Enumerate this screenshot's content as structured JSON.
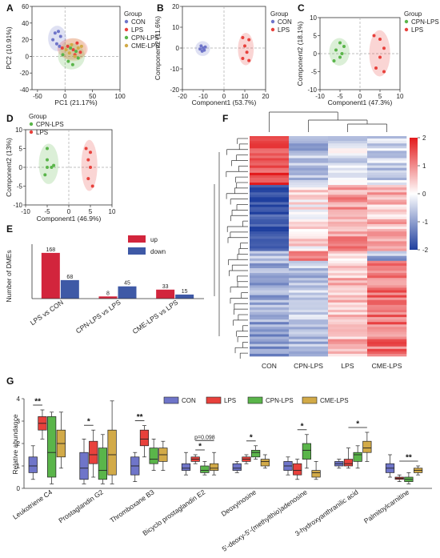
{
  "colors": {
    "CON": "#6f75c9",
    "LPS": "#e8413c",
    "CPN-LPS": "#5ab54a",
    "CME-LPS": "#d2aa48",
    "bar_up": "#d2253c",
    "bar_down": "#3e59a6",
    "heat_high": "#e31a1c",
    "heat_mid": "#ffffff",
    "heat_low": "#1f3f9e"
  },
  "chart_data": [
    {
      "panel": "A",
      "type": "scatter",
      "xlabel": "PC1 (21.17%)",
      "ylabel": "PC2 (10.91%)",
      "xlim": [
        -60,
        100
      ],
      "ylim": [
        -40,
        60
      ],
      "xticks": [
        "-50",
        "0",
        "50",
        "100"
      ],
      "yticks": [
        "-40",
        "-20",
        "0",
        "20",
        "40",
        "60"
      ],
      "legend_title": "Group",
      "legend": [
        "CON",
        "LPS",
        "CPN-LPS",
        "CME-LPS"
      ],
      "series": [
        {
          "name": "CON",
          "points": [
            [
              -22,
              20
            ],
            [
              -18,
              28
            ],
            [
              -12,
              30
            ],
            [
              -8,
              24
            ],
            [
              -15,
              15
            ],
            [
              -10,
              12
            ]
          ]
        },
        {
          "name": "LPS",
          "points": [
            [
              -5,
              10
            ],
            [
              5,
              12
            ],
            [
              15,
              8
            ],
            [
              22,
              16
            ],
            [
              28,
              5
            ],
            [
              18,
              2
            ]
          ]
        },
        {
          "name": "CPN-LPS",
          "points": [
            [
              -4,
              2
            ],
            [
              6,
              -6
            ],
            [
              14,
              -10
            ],
            [
              20,
              6
            ],
            [
              10,
              10
            ],
            [
              24,
              -2
            ]
          ]
        },
        {
          "name": "CME-LPS",
          "points": [
            [
              2,
              8
            ],
            [
              12,
              14
            ],
            [
              24,
              10
            ],
            [
              30,
              12
            ],
            [
              8,
              4
            ],
            [
              18,
              0
            ]
          ]
        }
      ]
    },
    {
      "panel": "B",
      "type": "scatter",
      "xlabel": "Component1 (53.7%)",
      "ylabel": "Component2 (11.6%)",
      "xlim": [
        -20,
        20
      ],
      "ylim": [
        -20,
        20
      ],
      "xticks": [
        "-20",
        "-10",
        "0",
        "10",
        "20"
      ],
      "yticks": [
        "-20",
        "-10",
        "0",
        "10",
        "20"
      ],
      "legend_title": "Group",
      "legend": [
        "CON",
        "LPS"
      ],
      "series": [
        {
          "name": "CON",
          "points": [
            [
              -11,
              1
            ],
            [
              -10,
              0
            ],
            [
              -9.5,
              -1
            ],
            [
              -10.5,
              -1.5
            ],
            [
              -9,
              0.5
            ],
            [
              -11.5,
              -0.5
            ]
          ]
        },
        {
          "name": "LPS",
          "points": [
            [
              9,
              5
            ],
            [
              12,
              4
            ],
            [
              10,
              1
            ],
            [
              11,
              -2
            ],
            [
              9,
              -5
            ],
            [
              12,
              -6
            ]
          ]
        }
      ]
    },
    {
      "panel": "C",
      "type": "scatter",
      "xlabel": "Component1 (47.3%)",
      "ylabel": "Component2 (18.1%)",
      "xlim": [
        -10,
        10
      ],
      "ylim": [
        -10,
        10
      ],
      "xticks": [
        "-10",
        "-5",
        "0",
        "5",
        "10"
      ],
      "yticks": [
        "-10",
        "-5",
        "0",
        "5",
        "10"
      ],
      "legend_title": "Group",
      "legend": [
        "CPN-LPS",
        "LPS"
      ],
      "series": [
        {
          "name": "CPN-LPS",
          "points": [
            [
              -6,
              1
            ],
            [
              -5,
              3
            ],
            [
              -4,
              2
            ],
            [
              -5,
              -1
            ],
            [
              -6.5,
              -2
            ],
            [
              -4.5,
              0
            ]
          ]
        },
        {
          "name": "LPS",
          "points": [
            [
              3.5,
              5
            ],
            [
              5,
              4
            ],
            [
              6,
              1.5
            ],
            [
              5,
              -1
            ],
            [
              4,
              -4
            ],
            [
              6,
              -5
            ]
          ]
        }
      ]
    },
    {
      "panel": "D",
      "type": "scatter",
      "xlabel": "Component1 (46.9%)",
      "ylabel": "Component2 (13%)",
      "xlim": [
        -10,
        10
      ],
      "ylim": [
        -10,
        10
      ],
      "xticks": [
        "-10",
        "-5",
        "0",
        "5",
        "10"
      ],
      "yticks": [
        "-10",
        "-5",
        "0",
        "5",
        "10"
      ],
      "legend_title": "Group",
      "legend": [
        "CPN-LPS",
        "LPS"
      ],
      "series": [
        {
          "name": "CPN-LPS",
          "points": [
            [
              -5,
              5
            ],
            [
              -5,
              2
            ],
            [
              -4,
              0
            ],
            [
              -5,
              0
            ],
            [
              -3.5,
              0.5
            ],
            [
              -5.5,
              -2
            ]
          ]
        },
        {
          "name": "LPS",
          "points": [
            [
              4,
              5
            ],
            [
              5,
              4
            ],
            [
              4.5,
              2
            ],
            [
              5,
              0
            ],
            [
              4.5,
              -3
            ],
            [
              5.5,
              -5
            ]
          ]
        }
      ]
    },
    {
      "panel": "E",
      "type": "bar",
      "ylabel": "Number of DMEs",
      "categories": [
        "LPS vs CON",
        "CPN-LPS vs LPS",
        "CME-LPS vs LPS"
      ],
      "ylim": [
        0,
        200
      ],
      "series": [
        {
          "name": "up",
          "values": [
            168,
            8,
            33
          ]
        },
        {
          "name": "down",
          "values": [
            68,
            45,
            15
          ]
        }
      ]
    },
    {
      "panel": "F",
      "type": "heatmap",
      "columns": [
        "CON",
        "CPN-LPS",
        "LPS",
        "CME-LPS"
      ],
      "color_scale": [
        "2",
        "1",
        "0",
        "-1",
        "-2"
      ],
      "vmin": -2,
      "vmax": 2
    },
    {
      "panel": "G",
      "type": "box",
      "ylabel": "Relative abundance",
      "ylim": [
        0,
        4
      ],
      "yticks": [
        "0",
        "1",
        "2",
        "3",
        "4"
      ],
      "groups": [
        "CON",
        "LPS",
        "CPN-LPS",
        "CME-LPS"
      ],
      "categories": [
        "Leukotriene C4",
        "Prostaglandin G2",
        "Thromboxane B3",
        "Bicyclo prostaglandin E2",
        "Deoxyinosine",
        "5'-deoxy-5'-(methylthio)adenosine",
        "3-hydroxyanthranilic acid",
        "Palmitoylcarnitine"
      ],
      "boxes": [
        [
          [
            0.4,
            0.7,
            1.0,
            1.4,
            1.9
          ],
          [
            2.2,
            2.6,
            2.9,
            3.2,
            3.5
          ],
          [
            0.2,
            0.5,
            1.6,
            3.2,
            3.4
          ],
          [
            0.9,
            1.4,
            2.0,
            2.6,
            3.4
          ]
        ],
        [
          [
            0.2,
            0.4,
            0.9,
            1.6,
            2.2
          ],
          [
            0.5,
            1.1,
            1.5,
            2.1,
            2.6
          ],
          [
            0.2,
            0.4,
            0.8,
            1.8,
            2.4
          ],
          [
            0.2,
            0.6,
            1.5,
            2.6,
            3.9
          ]
        ],
        [
          [
            0.3,
            0.6,
            1.0,
            1.4,
            1.6
          ],
          [
            1.4,
            1.9,
            2.2,
            2.6,
            2.8
          ],
          [
            0.8,
            1.1,
            1.3,
            1.8,
            2.2
          ],
          [
            0.8,
            1.2,
            1.5,
            1.8,
            2.1
          ]
        ],
        [
          [
            0.6,
            0.8,
            0.9,
            1.1,
            1.6
          ],
          [
            1.1,
            1.2,
            1.3,
            1.4,
            1.5
          ],
          [
            0.6,
            0.7,
            0.8,
            1.0,
            1.2
          ],
          [
            0.6,
            0.8,
            0.9,
            1.1,
            1.6
          ]
        ],
        [
          [
            0.7,
            0.8,
            0.9,
            1.1,
            1.2
          ],
          [
            1.1,
            1.2,
            1.3,
            1.4,
            1.5
          ],
          [
            1.3,
            1.4,
            1.6,
            1.7,
            1.9
          ],
          [
            0.9,
            1.0,
            1.2,
            1.3,
            1.5
          ]
        ],
        [
          [
            0.6,
            0.8,
            1.0,
            1.2,
            1.4
          ],
          [
            0.4,
            0.6,
            0.8,
            1.1,
            1.3
          ],
          [
            0.9,
            1.3,
            1.7,
            2.0,
            2.4
          ],
          [
            0.4,
            0.5,
            0.7,
            0.8,
            1.2
          ]
        ],
        [
          [
            0.9,
            1.0,
            1.1,
            1.2,
            1.3
          ],
          [
            0.9,
            1.0,
            1.1,
            1.3,
            1.8
          ],
          [
            0.9,
            1.2,
            1.5,
            1.6,
            1.9
          ],
          [
            1.2,
            1.6,
            1.8,
            2.1,
            2.5
          ]
        ],
        [
          [
            0.5,
            0.7,
            0.9,
            1.1,
            1.5
          ],
          [
            0.3,
            0.4,
            0.45,
            0.5,
            0.6
          ],
          [
            0.2,
            0.3,
            0.4,
            0.5,
            0.7
          ],
          [
            0.6,
            0.7,
            0.8,
            0.9,
            1.0
          ]
        ]
      ],
      "significance": [
        {
          "index": 0,
          "from": "CON",
          "to": "LPS",
          "label": "**"
        },
        {
          "index": 1,
          "from": "CON",
          "to": "LPS",
          "label": "*"
        },
        {
          "index": 2,
          "from": "CON",
          "to": "LPS",
          "label": "**"
        },
        {
          "index": 3,
          "from": "LPS",
          "to": "CPN-LPS",
          "label": "*"
        },
        {
          "index": 3,
          "from": "LPS",
          "to": "CME-LPS",
          "label": "p=0.098"
        },
        {
          "index": 4,
          "from": "LPS",
          "to": "CPN-LPS",
          "label": "*"
        },
        {
          "index": 5,
          "from": "LPS",
          "to": "CPN-LPS",
          "label": "*"
        },
        {
          "index": 6,
          "from": "LPS",
          "to": "CME-LPS",
          "label": "*"
        },
        {
          "index": 7,
          "from": "LPS",
          "to": "CME-LPS",
          "label": "**"
        }
      ]
    }
  ],
  "panels": {
    "A": "A",
    "B": "B",
    "C": "C",
    "D": "D",
    "E": "E",
    "F": "F",
    "G": "G"
  },
  "text": {
    "a_xlabel": "PC1 (21.17%)",
    "a_ylabel": "PC2 (10.91%)",
    "b_xlabel": "Component1 (53.7%)",
    "b_ylabel": "Component2 (11.6%)",
    "c_xlabel": "Component1 (47.3%)",
    "c_ylabel": "Component2 (18.1%)",
    "d_xlabel": "Component1 (46.9%)",
    "d_ylabel": "Component2 (13%)",
    "legend_title": "Group",
    "e_ylabel": "Number of DMEs",
    "g_ylabel": "Relative abundance",
    "leg_con": "CON",
    "leg_lps": "LPS",
    "leg_cpn": "CPN-LPS",
    "leg_cme": "CME-LPS",
    "leg_up": "up",
    "leg_down": "down"
  }
}
